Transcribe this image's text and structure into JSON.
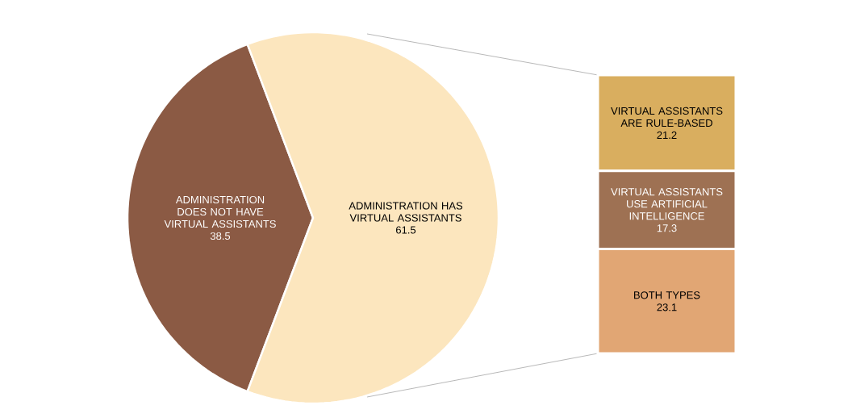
{
  "chart_data": [
    {
      "type": "pie",
      "categories": [
        "ADMINISTRATION DOES NOT HAVE VIRTUAL ASSISTANTS",
        "ADMINISTRATION HAS VIRTUAL ASSISTANTS"
      ],
      "values": [
        38.5,
        61.5
      ],
      "colors": [
        "#8b5a44",
        "#fce6be"
      ],
      "data_labels": true
    },
    {
      "type": "bar",
      "stacked": true,
      "categories": [
        null
      ],
      "data_labels": true,
      "series": [
        {
          "name": "BOTH TYPES",
          "color": "#e1a674",
          "values": [
            23.1
          ]
        },
        {
          "name": "VIRTUAL ASSISTANTS USE ARTIFICIAL INTELLIGENCE",
          "color": "#9e7153",
          "values": [
            17.3
          ]
        },
        {
          "name": "VIRTUAL ASSISTANTS ARE RULE-BASED",
          "color": "#d9ae5f",
          "values": [
            21.2
          ]
        }
      ]
    }
  ]
}
